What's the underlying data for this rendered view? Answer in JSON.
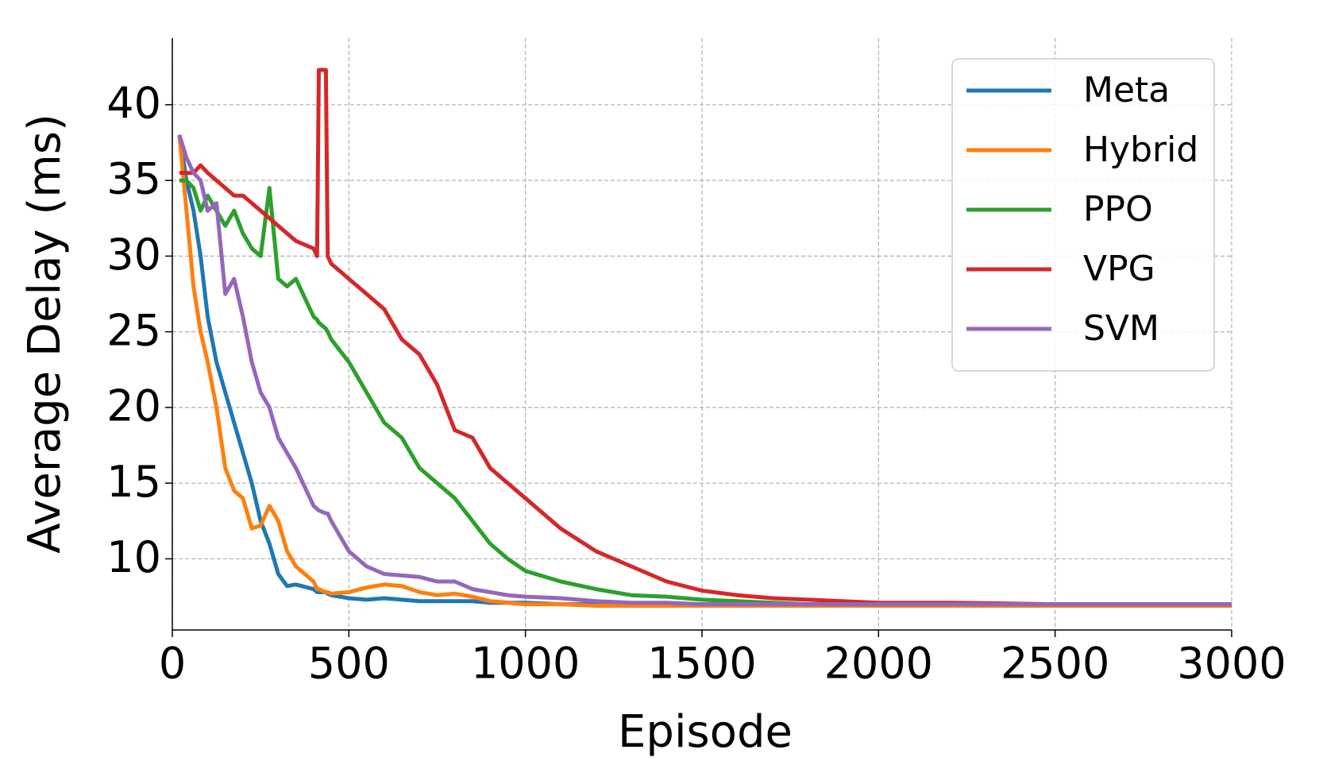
{
  "chart_data": {
    "type": "line",
    "x_label": "Episode",
    "y_label": "Average Delay (ms)",
    "x": [
      20,
      40,
      60,
      80,
      100,
      125,
      150,
      175,
      200,
      225,
      250,
      275,
      300,
      325,
      350,
      400,
      410,
      415,
      435,
      440,
      450,
      500,
      550,
      600,
      650,
      700,
      750,
      800,
      850,
      900,
      950,
      1000,
      1100,
      1200,
      1300,
      1400,
      1500,
      1600,
      1700,
      1800,
      2000,
      2200,
      2500,
      2800,
      3000
    ],
    "series": [
      {
        "name": "Meta",
        "color": "#1f77b4",
        "values": [
          38,
          35,
          33,
          30,
          26,
          23,
          21,
          19,
          17,
          15,
          12.5,
          11,
          9,
          8.2,
          8.3,
          8,
          7.8,
          7.8,
          7.8,
          7.7,
          7.6,
          7.4,
          7.3,
          7.4,
          7.3,
          7.2,
          7.2,
          7.2,
          7.2,
          7.1,
          7.1,
          7.1,
          7,
          7,
          7,
          7,
          7,
          7,
          7,
          7,
          7,
          7,
          7,
          7,
          7
        ]
      },
      {
        "name": "Hybrid",
        "color": "#ff7f0e",
        "values": [
          38,
          33,
          28,
          25,
          23,
          20,
          16,
          14.5,
          14,
          12,
          12.2,
          13.5,
          12.5,
          10.5,
          9.5,
          8.5,
          8,
          8,
          7.8,
          7.8,
          7.7,
          7.8,
          8.1,
          8.3,
          8.2,
          7.8,
          7.6,
          7.7,
          7.5,
          7.2,
          7.1,
          7,
          7,
          6.9,
          6.9,
          6.9,
          6.9,
          6.9,
          6.9,
          6.9,
          6.9,
          6.9,
          6.9,
          6.9,
          6.9
        ]
      },
      {
        "name": "PPO",
        "color": "#2ca02c",
        "values": [
          35,
          35,
          34.5,
          33,
          34,
          33,
          32,
          33,
          31.5,
          30.5,
          30,
          34.5,
          28.5,
          28,
          28.5,
          26,
          25.8,
          25.6,
          25.2,
          25,
          24.5,
          23,
          21,
          19,
          18,
          16,
          15,
          14,
          12.5,
          11,
          10,
          9.2,
          8.5,
          8,
          7.6,
          7.5,
          7.3,
          7.2,
          7.1,
          7,
          7,
          7,
          7,
          7,
          7
        ]
      },
      {
        "name": "VPG",
        "color": "#d62728",
        "values": [
          35.5,
          35.5,
          35.5,
          36,
          35.5,
          35,
          34.5,
          34,
          34,
          33.5,
          33,
          32.5,
          32,
          31.5,
          31,
          30.5,
          30,
          42.3,
          42.3,
          30,
          29.5,
          28.5,
          27.5,
          26.5,
          24.5,
          23.5,
          21.5,
          18.5,
          18,
          16,
          15,
          14,
          12,
          10.5,
          9.5,
          8.5,
          7.9,
          7.6,
          7.4,
          7.3,
          7.1,
          7.1,
          7,
          7,
          7
        ]
      },
      {
        "name": "SVM",
        "color": "#9467bd",
        "values": [
          38,
          36.5,
          35.5,
          35,
          33,
          33.5,
          27.5,
          28.5,
          26,
          23,
          21,
          20,
          18,
          17,
          16,
          13.5,
          13.3,
          13.2,
          13,
          13,
          12.5,
          10.5,
          9.5,
          9,
          8.9,
          8.8,
          8.5,
          8.5,
          8,
          7.8,
          7.6,
          7.5,
          7.4,
          7.2,
          7.1,
          7.1,
          7,
          7,
          7,
          7,
          7,
          7,
          7,
          7,
          7
        ]
      }
    ],
    "xlim": [
      0,
      3000
    ],
    "xticks": [
      0,
      500,
      1000,
      1500,
      2000,
      2500,
      3000
    ],
    "ylim": [
      5.3,
      44.4
    ],
    "yticks": [
      10,
      15,
      20,
      25,
      30,
      35,
      40
    ],
    "grid": true,
    "legend": "upper-right"
  }
}
